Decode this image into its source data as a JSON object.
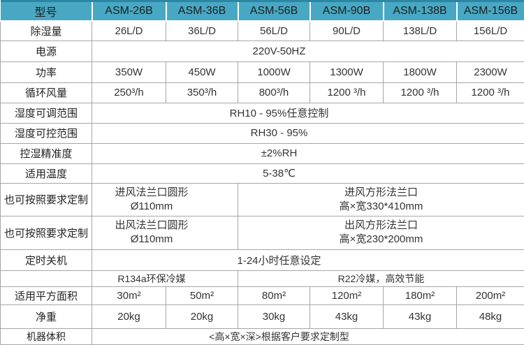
{
  "colors": {
    "header_bg": "#48a8c3",
    "header_top_border": "#2b86a3",
    "grid_border": "#a6a6a6",
    "text": "#333333"
  },
  "table": {
    "header": {
      "label": "型号",
      "models": [
        "ASM-26B",
        "ASM-36B",
        "ASM-56B",
        "ASM-90B",
        "ASM-138B",
        "ASM-156B"
      ]
    },
    "rows": {
      "dehumidify": {
        "label": "除湿量",
        "values": [
          "26L/D",
          "36L/D",
          "56L/D",
          "90L/D",
          "138L/D",
          "156L/D"
        ]
      },
      "power_supply": {
        "label": "电源",
        "value": "220V-50HZ"
      },
      "power": {
        "label": "功率",
        "values": [
          "350W",
          "450W",
          "1000W",
          "1300W",
          "1800W",
          "2300W"
        ]
      },
      "airflow": {
        "label": "循环风量",
        "values": [
          "250³/h",
          "350³/h",
          "800³/h",
          "1200 ³/h",
          "1200 ³/h",
          "1200 ³/h"
        ]
      },
      "humidity_adjust_range": {
        "label": "湿度可调范围",
        "value": "RH10 - 95%任意控制"
      },
      "humidity_control_range": {
        "label": "湿度可控范围",
        "value": "RH30 - 95%"
      },
      "humidity_accuracy": {
        "label": "控湿精准度",
        "value": "±2%RH"
      },
      "temperature": {
        "label": "适用温度",
        "value": "5-38℃"
      },
      "custom_inlet": {
        "label": "也可按照要求定制",
        "round_line1": "进风法兰口圆形",
        "round_line2": "Ø110mm",
        "square_line1": "进风方形法兰口",
        "square_line2": "高×宽330*410mm"
      },
      "custom_outlet": {
        "label": "也可按照要求定制",
        "round_line1": "出风法兰口圆形",
        "round_line2": "Ø110mm",
        "square_line1": "出风方形法兰口",
        "square_line2": "高×宽230*200mm"
      },
      "timer": {
        "label": "定时关机",
        "value": "1-24小时任意设定"
      },
      "refrigerant": {
        "label": "",
        "left": "R134a环保冷媒",
        "right": "R22冷媒，高效节能"
      },
      "area": {
        "label": "适用平方面积",
        "values": [
          "30m²",
          "50m²",
          "80m²",
          "120m²",
          "180m²",
          "200m²"
        ]
      },
      "weight": {
        "label": "净重",
        "values": [
          "20kg",
          "20kg",
          "30kg",
          "43kg",
          "43kg",
          "48kg"
        ]
      },
      "volume": {
        "label": "机器体积",
        "value": "<高×宽×深>根据客户要求定制型"
      }
    }
  }
}
